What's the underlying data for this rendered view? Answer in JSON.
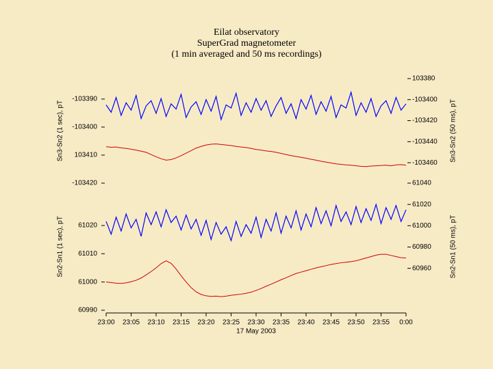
{
  "chart_data": [
    {
      "type": "line",
      "title": [
        "Eilat observatory",
        "SuperGrad magnetometer",
        "(1 min averaged and 50 ms recordings)"
      ],
      "ylabel": "Sn3-Sn2 (1 sec), pT",
      "y2label": "Sn3-Sn2 (50 ms), pT",
      "xlim": [
        0,
        60
      ],
      "ylim": [
        -103420,
        -103382.7
      ],
      "yticks": [
        -103390,
        -103400,
        {
          "value": -103410,
          "label": "103410"
        },
        -103420
      ],
      "y2lim": [
        -103479.4,
        -103380
      ],
      "y2ticks": [
        {
          "value": -103380,
          "label": "103380"
        },
        -103400,
        -103420,
        -103440,
        -103460
      ],
      "x": [
        0,
        1,
        2,
        3,
        4,
        5,
        6,
        7,
        8,
        9,
        10,
        11,
        12,
        13,
        14,
        15,
        16,
        17,
        18,
        19,
        20,
        21,
        22,
        23,
        24,
        25,
        26,
        27,
        28,
        29,
        30,
        31,
        32,
        33,
        34,
        35,
        36,
        37,
        38,
        39,
        40,
        41,
        42,
        43,
        44,
        45,
        46,
        47,
        48,
        49,
        50,
        51,
        52,
        53,
        54,
        55,
        56,
        57,
        58,
        59,
        60
      ],
      "series": [
        {
          "color": "#0000ff",
          "axis": "y2",
          "values": [
            -103405,
            -103412,
            -103398,
            -103415,
            -103403,
            -103410,
            -103396,
            -103418,
            -103406,
            -103401,
            -103413,
            -103399,
            -103416,
            -103404,
            -103409,
            -103395,
            -103417,
            -103407,
            -103402,
            -103414,
            -103400,
            -103411,
            -103397,
            -103419,
            -103405,
            -103408,
            -103394,
            -103415,
            -103403,
            -103412,
            -103399,
            -103410,
            -103401,
            -103416,
            -103406,
            -103398,
            -103413,
            -103404,
            -103418,
            -103400,
            -103409,
            -103396,
            -103414,
            -103402,
            -103411,
            -103397,
            -103417,
            -103405,
            -103408,
            -103393,
            -103415,
            -103403,
            -103412,
            -103399,
            -103416,
            -103406,
            -103401,
            -103413,
            -103398,
            -103410,
            -103404
          ]
        },
        {
          "color": "#cc0000",
          "values": [
            -103407.0,
            -103407.2,
            -103407.1,
            -103407.4,
            -103407.6,
            -103407.9,
            -103408.2,
            -103408.6,
            -103409.0,
            -103409.8,
            -103410.6,
            -103411.3,
            -103411.8,
            -103411.6,
            -103411.0,
            -103410.2,
            -103409.3,
            -103408.4,
            -103407.5,
            -103406.9,
            -103406.4,
            -103406.1,
            -103406.0,
            -103406.2,
            -103406.4,
            -103406.6,
            -103406.9,
            -103407.1,
            -103407.3,
            -103407.6,
            -103408.0,
            -103408.2,
            -103408.5,
            -103408.7,
            -103409.0,
            -103409.4,
            -103409.8,
            -103410.2,
            -103410.5,
            -103410.8,
            -103411.1,
            -103411.5,
            -103411.8,
            -103412.2,
            -103412.5,
            -103412.8,
            -103413.1,
            -103413.3,
            -103413.5,
            -103413.6,
            -103413.8,
            -103414.0,
            -103414.1,
            -103413.9,
            -103413.8,
            -103413.7,
            -103413.6,
            -103413.8,
            -103413.5,
            -103413.4,
            -103413.6
          ]
        }
      ]
    },
    {
      "type": "line",
      "ylabel": "Sn2-Sn1 (1 sec), pT",
      "y2label": "Sn2-Sn1 (50 ms), pT",
      "xlabel": "17 May 2003",
      "xlim": [
        0,
        60
      ],
      "xticks": [
        {
          "value": 0,
          "label": "23:00"
        },
        {
          "value": 5,
          "label": "23:05"
        },
        {
          "value": 10,
          "label": "23:10"
        },
        {
          "value": 15,
          "label": "23:15"
        },
        {
          "value": 20,
          "label": "23:20"
        },
        {
          "value": 25,
          "label": "23:25"
        },
        {
          "value": 30,
          "label": "23:30"
        },
        {
          "value": 35,
          "label": "23:35"
        },
        {
          "value": 40,
          "label": "23:40"
        },
        {
          "value": 45,
          "label": "23:45"
        },
        {
          "value": 50,
          "label": "23:50"
        },
        {
          "value": 55,
          "label": "23:55"
        },
        {
          "value": 60,
          "label": "0:00"
        }
      ],
      "ylim": [
        60990,
        61035
      ],
      "yticks": [
        61020,
        61010,
        61000,
        60990
      ],
      "y2lim": [
        60920.6,
        61040
      ],
      "y2ticks": [
        61040,
        61020,
        61000,
        60980,
        60960
      ],
      "x": [
        0,
        1,
        2,
        3,
        4,
        5,
        6,
        7,
        8,
        9,
        10,
        11,
        12,
        13,
        14,
        15,
        16,
        17,
        18,
        19,
        20,
        21,
        22,
        23,
        24,
        25,
        26,
        27,
        28,
        29,
        30,
        31,
        32,
        33,
        34,
        35,
        36,
        37,
        38,
        39,
        40,
        41,
        42,
        43,
        44,
        45,
        46,
        47,
        48,
        49,
        50,
        51,
        52,
        53,
        54,
        55,
        56,
        57,
        58,
        59,
        60
      ],
      "series": [
        {
          "color": "#0000ff",
          "axis": "y2",
          "values": [
            61004,
            60992,
            61008,
            60995,
            61011,
            60998,
            61006,
            60990,
            61012,
            61001,
            61013,
            60999,
            61015,
            61003,
            61009,
            60996,
            61010,
            60997,
            61006,
            60991,
            61005,
            60987,
            61003,
            60992,
            60999,
            60986,
            61004,
            60990,
            61001,
            60993,
            61008,
            60989,
            61006,
            60995,
            61012,
            60993,
            61009,
            60998,
            61014,
            60996,
            61011,
            60999,
            61017,
            61002,
            61014,
            61000,
            61019,
            61004,
            61013,
            61001,
            61018,
            61003,
            61016,
            61005,
            61020,
            61002,
            61017,
            61006,
            61019,
            61004,
            61015
          ]
        },
        {
          "color": "#cc0000",
          "values": [
            61000.0,
            60999.8,
            60999.6,
            60999.5,
            60999.7,
            61000.1,
            61000.6,
            61001.4,
            61002.5,
            61003.7,
            61005.0,
            61006.5,
            61007.5,
            61006.6,
            61004.6,
            61002.2,
            61000.0,
            60998.0,
            60996.5,
            60995.6,
            60995.1,
            60994.9,
            60995.0,
            60994.8,
            60995.0,
            60995.3,
            60995.5,
            60995.7,
            60996.0,
            60996.4,
            60997.0,
            60997.7,
            60998.5,
            60999.2,
            61000.0,
            61000.8,
            61001.5,
            61002.3,
            61003.0,
            61003.5,
            61004.0,
            61004.5,
            61005.0,
            61005.4,
            61005.8,
            61006.2,
            61006.5,
            61006.8,
            61007.0,
            61007.2,
            61007.5,
            61008.0,
            61008.5,
            61009.0,
            61009.5,
            61009.8,
            61009.8,
            61009.4,
            61009.0,
            61008.6,
            61008.5
          ]
        }
      ]
    }
  ]
}
